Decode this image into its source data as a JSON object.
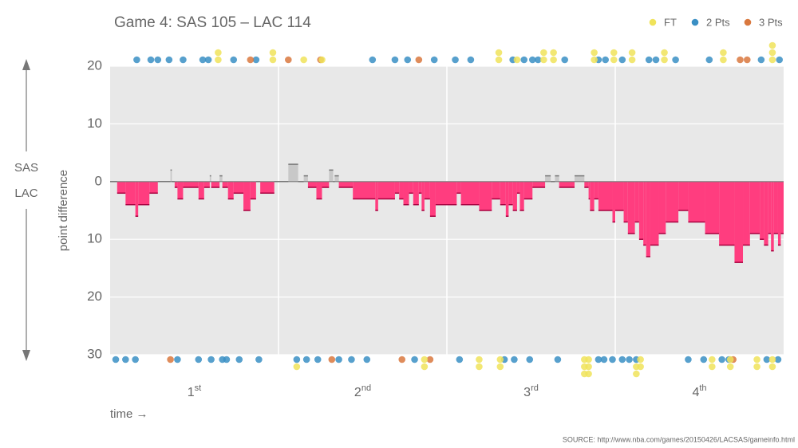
{
  "chart_data": {
    "type": "step",
    "title": "Game 4: SAS 105  –  LAC 114",
    "y_label": "point difference",
    "x_label": "time →",
    "side_labels": [
      "SAS",
      "LAC"
    ],
    "source": "SOURCE: http://www.nba.com/games/20150426/LACSAS/gameinfo.html",
    "quarters": [
      {
        "number": "1",
        "suffix": "st"
      },
      {
        "number": "2",
        "suffix": "nd"
      },
      {
        "number": "3",
        "suffix": "rd"
      },
      {
        "number": "4",
        "suffix": "th"
      }
    ],
    "xlim": [
      0,
      48
    ],
    "xgrid": [
      12,
      24,
      36
    ],
    "ylim": [
      -30,
      20
    ],
    "yticks": [
      {
        "value": 20,
        "label": "20"
      },
      {
        "value": 10,
        "label": "10"
      },
      0,
      {
        "value": -10,
        "label": "10"
      },
      {
        "value": -20,
        "label": "20"
      },
      {
        "value": -30,
        "label": "30"
      }
    ],
    "grid": true,
    "colors": {
      "positive": "#c8c8c8",
      "negative": "#ff3d7f"
    },
    "x": [
      0,
      0.5,
      1.1,
      1.8,
      2.0,
      2.8,
      3.4,
      4.3,
      4.4,
      4.6,
      4.8,
      5.2,
      6.3,
      6.7,
      7.1,
      7.2,
      7.8,
      8.0,
      8.4,
      8.8,
      9.5,
      10.0,
      10.4,
      10.7,
      11.7,
      12.7,
      13.4,
      13.8,
      14.1,
      14.7,
      15.1,
      15.6,
      15.9,
      16.0,
      16.3,
      17.3,
      18.9,
      19.1,
      20.3,
      20.6,
      20.9,
      21.3,
      21.6,
      22.0,
      22.2,
      22.4,
      22.8,
      23.2,
      24.7,
      25.0,
      26.3,
      27.2,
      27.8,
      28.2,
      28.4,
      28.7,
      29.0,
      29.2,
      29.5,
      30.1,
      31.0,
      31.4,
      31.7,
      32.0,
      33.1,
      33.8,
      34.1,
      34.2,
      34.5,
      34.8,
      35.8,
      36.0,
      36.6,
      36.9,
      37.4,
      37.7,
      38.0,
      38.2,
      38.5,
      39.1,
      39.6,
      40.5,
      41.2,
      42.4,
      43.4,
      44.5,
      45.1,
      45.6,
      46.3,
      46.6,
      46.9,
      47.1,
      47.3,
      47.6,
      47.8
    ],
    "values": [
      0,
      -2,
      -4,
      -6,
      -4,
      -2,
      0,
      2,
      0,
      -1,
      -3,
      -1,
      -3,
      -1,
      1,
      -1,
      1,
      -1,
      -3,
      -2,
      -5,
      -3,
      0,
      -2,
      0,
      3,
      0,
      1,
      -1,
      -3,
      -1,
      2,
      0,
      1,
      -1,
      -3,
      -5,
      -3,
      -2,
      -3,
      -4,
      -2,
      -4,
      -2,
      -5,
      -3,
      -6,
      -4,
      -2,
      -4,
      -5,
      -3,
      -4,
      -6,
      -4,
      -5,
      -2,
      -5,
      -3,
      -1,
      1,
      0,
      1,
      -1,
      1,
      -1,
      -3,
      -5,
      -3,
      -5,
      -7,
      -5,
      -7,
      -9,
      -7,
      -10,
      -11,
      -13,
      -11,
      -9,
      -7,
      -5,
      -7,
      -9,
      -11,
      -14,
      -11,
      -9,
      -10,
      -11,
      -9,
      -12,
      -9,
      -11,
      -9
    ],
    "scoring": [
      {
        "name": "FT",
        "color": "#f0e35a",
        "sas": [
          7.7,
          7.7,
          11.6,
          11.6,
          13.8,
          15.1,
          27.7,
          27.7,
          29.0,
          30.9,
          30.9,
          31.6,
          31.6,
          34.5,
          34.5,
          35.9,
          35.9,
          37.2,
          37.2,
          39.5,
          39.5,
          43.7,
          43.7,
          47.2,
          47.2,
          47.2
        ],
        "lac": [
          13.3,
          22.4,
          22.4,
          26.3,
          26.3,
          27.8,
          27.8,
          33.8,
          33.8,
          33.8,
          34.1,
          34.1,
          34.1,
          37.5,
          37.5,
          37.8,
          37.8,
          42.9,
          42.9,
          44.2,
          44.2,
          46.1,
          46.1,
          47.2,
          47.2
        ]
      },
      {
        "name": "2 Pts",
        "color": "#3a8fc4",
        "sas": [
          1.9,
          2.9,
          3.4,
          4.2,
          5.2,
          6.6,
          7.0,
          8.8,
          10.4,
          18.7,
          20.3,
          21.2,
          23.1,
          24.6,
          25.7,
          28.7,
          29.5,
          30.1,
          30.5,
          32.4,
          34.8,
          35.3,
          36.5,
          38.4,
          38.9,
          40.3,
          42.7,
          46.4,
          47.7
        ],
        "lac": [
          0.4,
          1.1,
          1.8,
          4.8,
          6.3,
          7.2,
          8.0,
          8.3,
          9.2,
          10.6,
          13.3,
          14.0,
          14.8,
          16.3,
          17.2,
          18.3,
          21.7,
          24.9,
          28.1,
          28.8,
          29.9,
          31.9,
          34.8,
          35.2,
          35.8,
          36.5,
          37.0,
          37.5,
          41.2,
          42.3,
          43.6,
          44.1,
          46.8,
          47.6
        ]
      },
      {
        "name": "3 Pts",
        "color": "#d9783e",
        "sas": [
          10.0,
          12.7,
          15.0,
          22.0,
          44.9,
          45.4
        ],
        "lac": [
          4.3,
          15.8,
          20.8,
          22.8,
          44.4
        ]
      }
    ]
  }
}
